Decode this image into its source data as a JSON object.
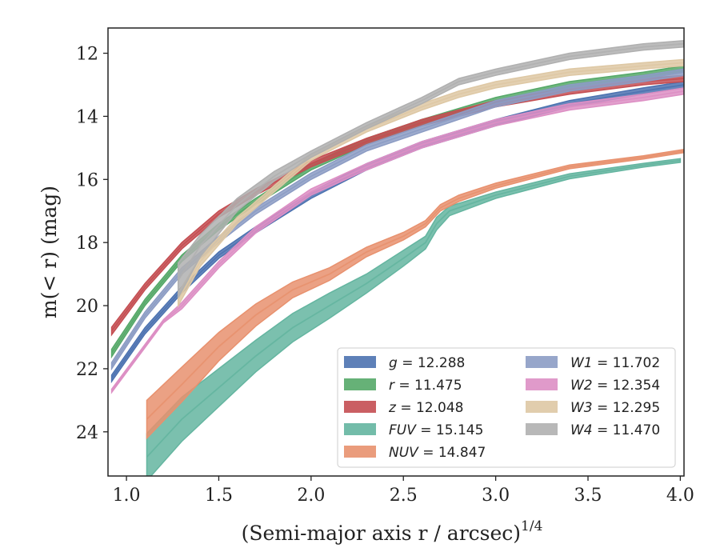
{
  "chart_data": {
    "type": "line",
    "xlabel": "(Semi-major axis r / arcsec)",
    "xlabel_exponent": "1/4",
    "ylabel": "m(< r) (mag)",
    "xlim": [
      0.9,
      4.02
    ],
    "ylim": [
      25.4,
      11.2
    ],
    "y_inverted": true,
    "grid": false,
    "legend_position": "lower-right",
    "x_ticks": [
      "1.0",
      "1.5",
      "2.0",
      "2.5",
      "3.0",
      "3.5",
      "4.0"
    ],
    "y_ticks": [
      "12",
      "14",
      "16",
      "18",
      "20",
      "22",
      "24"
    ],
    "series": [
      {
        "name": "g = 12.288",
        "var": "g",
        "value": "12.288",
        "color": "#4c72b0",
        "x": [
          0.92,
          1.1,
          1.3,
          1.5,
          1.7,
          2.0,
          2.3,
          2.6,
          3.0,
          3.4,
          3.8,
          4.02
        ],
        "y": [
          22.3,
          20.8,
          19.5,
          18.4,
          17.6,
          16.5,
          15.6,
          14.9,
          14.2,
          13.6,
          13.2,
          13.0
        ],
        "band": [
          0.1,
          0.1,
          0.1,
          0.1,
          0.1,
          0.1,
          0.1,
          0.1,
          0.1,
          0.1,
          0.1,
          0.1
        ]
      },
      {
        "name": "r = 11.475",
        "var": "r",
        "value": "11.475",
        "color": "#55a868",
        "x": [
          0.92,
          1.1,
          1.3,
          1.5,
          1.7,
          2.0,
          2.3,
          2.6,
          3.0,
          3.4,
          3.8,
          4.02
        ],
        "y": [
          21.5,
          19.9,
          18.5,
          17.5,
          16.7,
          15.6,
          14.8,
          14.2,
          13.5,
          13.0,
          12.7,
          12.5
        ],
        "band": [
          0.12,
          0.1,
          0.1,
          0.1,
          0.1,
          0.1,
          0.1,
          0.1,
          0.1,
          0.1,
          0.1,
          0.1
        ]
      },
      {
        "name": "z = 12.048",
        "var": "z",
        "value": "12.048",
        "color": "#c44e52",
        "x": [
          0.92,
          1.1,
          1.3,
          1.5,
          1.7,
          2.0,
          2.3,
          2.6,
          3.0,
          3.4,
          3.8,
          4.02
        ],
        "y": [
          20.8,
          19.4,
          18.1,
          17.1,
          16.4,
          15.5,
          14.8,
          14.2,
          13.6,
          13.2,
          12.9,
          12.8
        ],
        "band": [
          0.12,
          0.1,
          0.1,
          0.1,
          0.1,
          0.1,
          0.1,
          0.1,
          0.1,
          0.1,
          0.1,
          0.1
        ]
      },
      {
        "name": "FUV = 15.145",
        "var": "FUV",
        "value": "15.145",
        "color": "#64b5a0",
        "x": [
          1.11,
          1.3,
          1.5,
          1.7,
          1.9,
          2.1,
          2.3,
          2.5,
          2.62,
          2.68,
          2.75,
          3.0,
          3.4,
          3.8,
          4.0
        ],
        "y": [
          24.8,
          23.6,
          22.6,
          21.6,
          20.7,
          20.0,
          19.3,
          18.5,
          18.0,
          17.4,
          17.0,
          16.5,
          15.9,
          15.55,
          15.4
        ],
        "band": [
          0.75,
          0.7,
          0.6,
          0.5,
          0.45,
          0.4,
          0.3,
          0.25,
          0.2,
          0.2,
          0.15,
          0.1,
          0.08,
          0.06,
          0.06
        ]
      },
      {
        "name": "NUV = 14.847",
        "var": "NUV",
        "value": "14.847",
        "color": "#e8916e",
        "x": [
          1.11,
          1.3,
          1.5,
          1.7,
          1.9,
          2.1,
          2.3,
          2.5,
          2.62,
          2.7,
          2.8,
          3.0,
          3.4,
          3.8,
          4.02
        ],
        "y": [
          23.6,
          22.5,
          21.3,
          20.3,
          19.5,
          19.0,
          18.3,
          17.8,
          17.4,
          16.9,
          16.6,
          16.2,
          15.6,
          15.3,
          15.1
        ],
        "band": [
          0.6,
          0.55,
          0.45,
          0.35,
          0.25,
          0.2,
          0.15,
          0.12,
          0.1,
          0.1,
          0.1,
          0.08,
          0.06,
          0.05,
          0.05
        ]
      },
      {
        "name": "W1 = 11.702",
        "var": "W1",
        "value": "11.702",
        "color": "#8c9cc4",
        "x": [
          0.92,
          1.1,
          1.3,
          1.5,
          1.7,
          2.0,
          2.3,
          2.6,
          3.0,
          3.4,
          3.8,
          4.02
        ],
        "y": [
          21.9,
          20.3,
          18.9,
          17.9,
          17.0,
          15.9,
          15.0,
          14.4,
          13.6,
          13.1,
          12.8,
          12.6
        ],
        "band": [
          0.1,
          0.1,
          0.1,
          0.1,
          0.1,
          0.1,
          0.1,
          0.1,
          0.1,
          0.1,
          0.1,
          0.1
        ]
      },
      {
        "name": "W2 = 12.354",
        "var": "W2",
        "value": "12.354",
        "color": "#dd8fc4",
        "x": [
          0.92,
          1.2,
          1.3,
          1.5,
          1.7,
          2.0,
          2.3,
          2.6,
          3.0,
          3.4,
          3.8,
          4.02
        ],
        "y": [
          22.7,
          20.5,
          20.0,
          18.7,
          17.6,
          16.4,
          15.6,
          14.9,
          14.2,
          13.7,
          13.4,
          13.2
        ],
        "band": [
          0.05,
          0.05,
          0.1,
          0.1,
          0.1,
          0.1,
          0.1,
          0.1,
          0.1,
          0.1,
          0.1,
          0.1
        ]
      },
      {
        "name": "W3 = 12.295",
        "var": "W3",
        "value": "12.295",
        "color": "#dec8a4",
        "x": [
          1.28,
          1.4,
          1.6,
          1.8,
          2.0,
          2.3,
          2.6,
          2.8,
          3.0,
          3.4,
          3.8,
          4.02
        ],
        "y": [
          19.8,
          18.6,
          17.3,
          16.3,
          15.3,
          14.4,
          13.7,
          13.3,
          13.0,
          12.6,
          12.4,
          12.3
        ],
        "band": [
          0.2,
          0.15,
          0.1,
          0.1,
          0.1,
          0.1,
          0.1,
          0.1,
          0.1,
          0.1,
          0.1,
          0.1
        ]
      },
      {
        "name": "W4 = 11.470",
        "var": "W4",
        "value": "11.470",
        "color": "#b0b0b0",
        "x": [
          1.28,
          1.4,
          1.6,
          1.8,
          2.0,
          2.3,
          2.6,
          2.8,
          3.0,
          3.4,
          3.8,
          4.02
        ],
        "y": [
          19.2,
          18.1,
          16.8,
          15.9,
          15.2,
          14.3,
          13.5,
          12.9,
          12.6,
          12.1,
          11.8,
          11.7
        ],
        "band": [
          0.55,
          0.35,
          0.2,
          0.15,
          0.1,
          0.1,
          0.1,
          0.1,
          0.1,
          0.1,
          0.1,
          0.1
        ]
      }
    ]
  }
}
